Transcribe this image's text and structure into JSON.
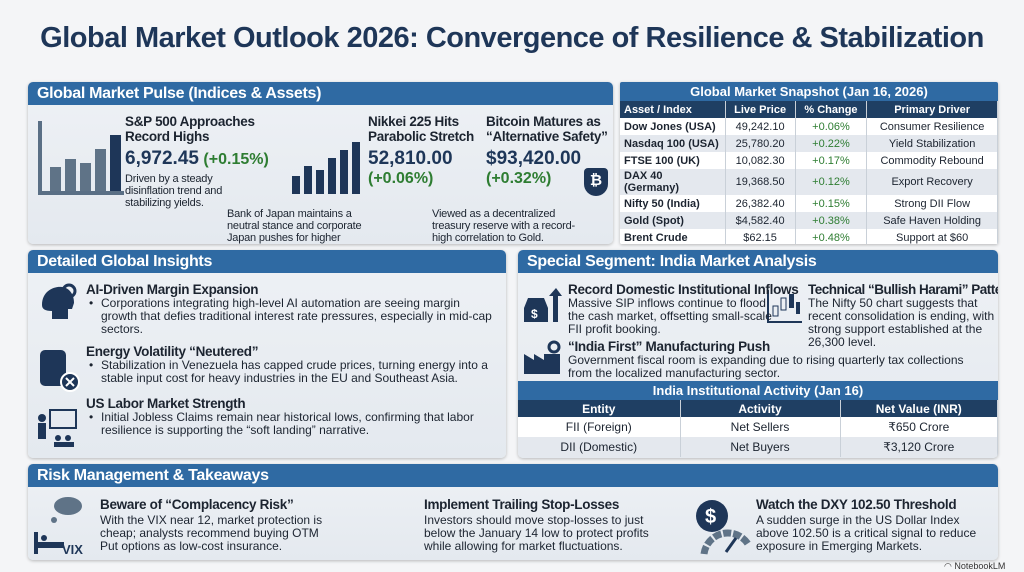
{
  "title": "Global Market Outlook 2026: Convergence of Resilience & Stabilization",
  "pulse": {
    "header": "Global Market Pulse (Indices & Assets)",
    "sp": {
      "title": "S&P 500 Approaches Record Highs",
      "value": "6,972.45",
      "change": "(+0.15%)",
      "desc": "Driven by a steady disinflation trend and stabilizing yields."
    },
    "nikkei": {
      "title": "Nikkei 225 Hits Parabolic Stretch",
      "value": "52,810.00",
      "change": "(+0.06%)",
      "desc": "Bank of Japan maintains a neutral stance and corporate Japan pushes for higher dividends."
    },
    "btc": {
      "title": "Bitcoin Matures as “Alternative Safety”",
      "value": "$93,420.00",
      "change": "(+0.32%)",
      "desc": "Viewed as a decentralized treasury reserve with a record-high correlation to Gold.",
      "icon_text": "₿"
    }
  },
  "snapshot": {
    "title": "Global Market Snapshot (Jan 16, 2026)",
    "columns": [
      "Asset / Index",
      "Live Price",
      "% Change",
      "Primary Driver"
    ],
    "rows": [
      [
        "Dow Jones (USA)",
        "49,242.10",
        "+0.06%",
        "Consumer Resilience"
      ],
      [
        "Nasdaq 100 (USA)",
        "25,780.20",
        "+0.22%",
        "Yield Stabilization"
      ],
      [
        "FTSE 100 (UK)",
        "10,082.30",
        "+0.17%",
        "Commodity Rebound"
      ],
      [
        "DAX 40 (Germany)",
        "19,368.50",
        "+0.12%",
        "Export Recovery"
      ],
      [
        "Nifty 50 (India)",
        "26,382.40",
        "+0.15%",
        "Strong DII Flow"
      ],
      [
        "Gold (Spot)",
        "$4,582.40",
        "+0.38%",
        "Safe Haven Holding"
      ],
      [
        "Brent Crude",
        "$62.15",
        "+0.48%",
        "Support at $60"
      ]
    ]
  },
  "insights": {
    "header": "Detailed Global Insights",
    "items": [
      {
        "title": "AI-Driven Margin Expansion",
        "text": "Corporations integrating high-level AI automation are seeing margin growth that defies traditional interest rate pressures, especially in mid-cap sectors."
      },
      {
        "title": "Energy Volatility “Neutered”",
        "text": "Stabilization in Venezuela has capped crude prices, turning energy into a stable input cost for heavy industries in the EU and Southeast Asia."
      },
      {
        "title": "US Labor Market Strength",
        "text": "Initial Jobless Claims remain near historical lows, confirming that labor resilience is supporting the “soft landing” narrative."
      }
    ]
  },
  "india": {
    "header": "Special Segment: India Market Analysis",
    "inflows": {
      "title": "Record Domestic Institutional Inflows",
      "text": "Massive SIP inflows continue to flood the cash market, offsetting small-scale FII profit booking."
    },
    "harami": {
      "title": "Technical “Bullish Harami” Pattern",
      "text": "The Nifty 50 chart suggests that recent consolidation is ending, with strong support established at the 26,300 level."
    },
    "manufacturing": {
      "title": "“India First” Manufacturing Push",
      "text": "Government fiscal room is expanding due to rising quarterly tax collections from the localized manufacturing sector."
    },
    "table": {
      "title": "India Institutional Activity (Jan 16)",
      "columns": [
        "Entity",
        "Activity",
        "Net Value (INR)"
      ],
      "rows": [
        [
          "FII (Foreign)",
          "Net Sellers",
          "₹650 Crore"
        ],
        [
          "DII (Domestic)",
          "Net Buyers",
          "₹3,120 Crore"
        ]
      ]
    }
  },
  "risk": {
    "header": "Risk Management & Takeaways",
    "items": [
      {
        "title": "Beware of “Complacency Risk”",
        "text": "With the VIX near 12, market protection is cheap; analysts recommend buying OTM Put options as low-cost insurance.",
        "icon_text": "VIX"
      },
      {
        "title": "Implement Trailing Stop-Losses",
        "text": "Investors should move stop-losses to just below the January 14 low to protect profits while allowing for market fluctuations."
      },
      {
        "title": "Watch the DXY 102.50 Threshold",
        "text": "A sudden surge in the US Dollar Index above 102.50 is a critical signal to reduce exposure in Emerging Markets.",
        "icon_text": "$"
      }
    ]
  },
  "brand": "NotebookLM",
  "colors": {
    "header": "#2f6aa3",
    "navy": "#1e3658",
    "green": "#2e7d32"
  }
}
